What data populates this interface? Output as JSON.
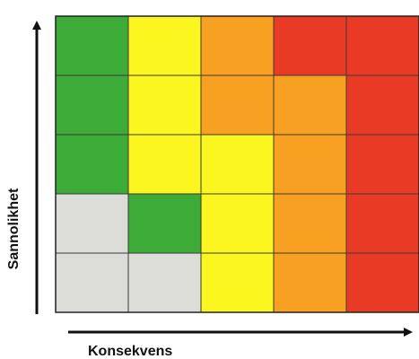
{
  "matrix": {
    "rows": 5,
    "cols": 5,
    "colors": {
      "gray": "#dcdcd8",
      "green": "#3dab38",
      "yellow": "#fbf61f",
      "orange": "#f7a022",
      "red": "#e93a25"
    },
    "cells": [
      [
        "green",
        "yellow",
        "orange",
        "red",
        "red"
      ],
      [
        "green",
        "yellow",
        "orange",
        "orange",
        "red"
      ],
      [
        "green",
        "yellow",
        "yellow",
        "orange",
        "red"
      ],
      [
        "gray",
        "green",
        "yellow",
        "orange",
        "red"
      ],
      [
        "gray",
        "gray",
        "yellow",
        "orange",
        "red"
      ]
    ]
  },
  "axes": {
    "y_label": "Sannolikhet",
    "x_label": "Konsekvens"
  }
}
